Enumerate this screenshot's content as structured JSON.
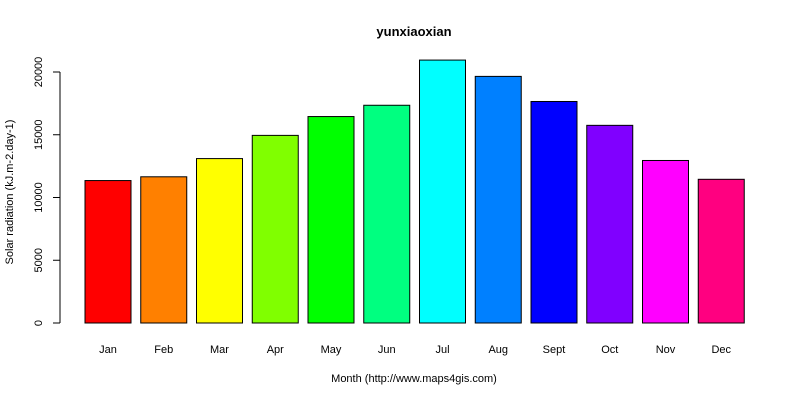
{
  "chart_data": {
    "type": "bar",
    "title": "yunxiaoxian",
    "xlabel": "Month (http://www.maps4gis.com)",
    "ylabel": "Solar radiation (kJ.m-2.day-1)",
    "categories": [
      "Jan",
      "Feb",
      "Mar",
      "Apr",
      "May",
      "Jun",
      "Jul",
      "Aug",
      "Sept",
      "Oct",
      "Nov",
      "Dec"
    ],
    "values": [
      11350,
      11650,
      13100,
      14950,
      16450,
      17350,
      20950,
      19650,
      17650,
      15750,
      12950,
      11450
    ],
    "colors": [
      "#FF0000",
      "#FF8000",
      "#FFFF00",
      "#80FF00",
      "#00FF00",
      "#00FF80",
      "#00FFFF",
      "#0080FF",
      "#0000FF",
      "#8000FF",
      "#FF00FF",
      "#FF0080"
    ],
    "ylim": [
      0,
      21000
    ],
    "yticks": [
      0,
      5000,
      10000,
      15000,
      20000
    ],
    "grid": false,
    "legend": "none"
  }
}
